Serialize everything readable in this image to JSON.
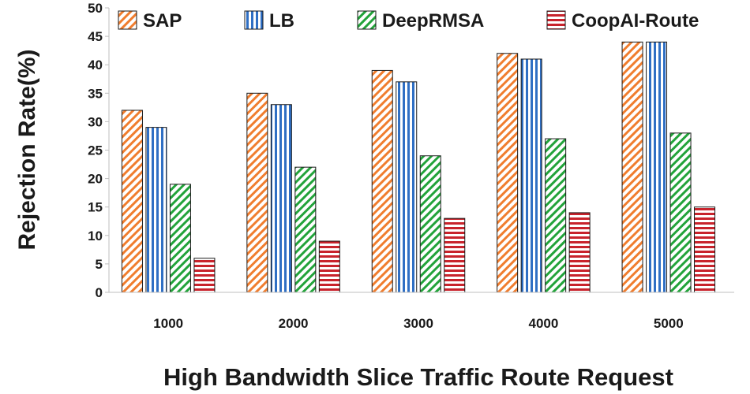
{
  "chart_data": {
    "type": "bar",
    "title": "",
    "xlabel": "High Bandwidth Slice Traffic Route Request",
    "ylabel": "Rejection Rate(%)",
    "ylim": [
      0,
      50
    ],
    "yticks": [
      0,
      5,
      10,
      15,
      20,
      25,
      30,
      35,
      40,
      45,
      50
    ],
    "categories": [
      "1000",
      "2000",
      "3000",
      "4000",
      "5000"
    ],
    "legend_position": "top",
    "series": [
      {
        "name": "SAP",
        "values": [
          32,
          35,
          39,
          42,
          44
        ],
        "color": "#f07d2e",
        "pattern": "diagonal"
      },
      {
        "name": "LB",
        "values": [
          29,
          33,
          37,
          41,
          44
        ],
        "color": "#2f6fc4",
        "pattern": "vertical"
      },
      {
        "name": "DeepRMSA",
        "values": [
          19,
          22,
          24,
          27,
          28
        ],
        "color": "#22a33a",
        "pattern": "diagonal"
      },
      {
        "name": "CoopAI-Route",
        "values": [
          6,
          9,
          13,
          14,
          15
        ],
        "color": "#c8232c",
        "pattern": "horizontal"
      }
    ]
  }
}
